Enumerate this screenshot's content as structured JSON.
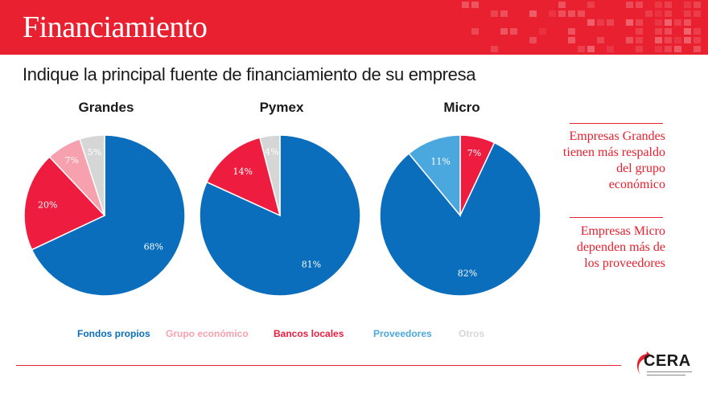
{
  "header": {
    "title": "Financiamiento"
  },
  "subtitle": "Indique la principal fuente de financiamiento de su empresa",
  "colors": {
    "brand_red": "#e8202f",
    "fondos_propios": "#0a6ebd",
    "grupo_economico": "#f7a1ae",
    "bancos_locales": "#ee1d3f",
    "proveedores": "#4aa8de",
    "otros": "#d6d6d6"
  },
  "chart_data": [
    {
      "type": "pie",
      "title": "Grandes",
      "slices": [
        {
          "label": "Fondos propios",
          "value": 68,
          "display": "68%"
        },
        {
          "label": "Bancos locales",
          "value": 20,
          "display": "20%"
        },
        {
          "label": "Grupo económico",
          "value": 7,
          "display": "7%"
        },
        {
          "label": "Otros",
          "value": 5,
          "display": "5%"
        }
      ]
    },
    {
      "type": "pie",
      "title": "Pymex",
      "slices": [
        {
          "label": "Fondos propios",
          "value": 81,
          "display": "81%"
        },
        {
          "label": "Bancos locales",
          "value": 14,
          "display": "14%"
        },
        {
          "label": "Otros",
          "value": 4,
          "display": "4%"
        }
      ]
    },
    {
      "type": "pie",
      "title": "Micro",
      "slices": [
        {
          "label": "Bancos locales",
          "value": 7,
          "display": "7%"
        },
        {
          "label": "Fondos propios",
          "value": 82,
          "display": "82%"
        },
        {
          "label": "Proveedores",
          "value": 11,
          "display": "11%"
        }
      ]
    }
  ],
  "legend": [
    {
      "label": "Fondos propios",
      "color": "#0a6ebd"
    },
    {
      "label": "Grupo económico",
      "color": "#f7a1ae"
    },
    {
      "label": "Bancos locales",
      "color": "#ee1d3f"
    },
    {
      "label": "Proveedores",
      "color": "#4aa8de"
    },
    {
      "label": "Otros",
      "color": "#d6d6d6"
    }
  ],
  "notes": [
    "Empresas Grandes tienen más respaldo del grupo económico",
    "Empresas Micro dependen más de los proveedores"
  ],
  "logo": {
    "text": "CERA",
    "icon": "cera-logo-icon"
  }
}
